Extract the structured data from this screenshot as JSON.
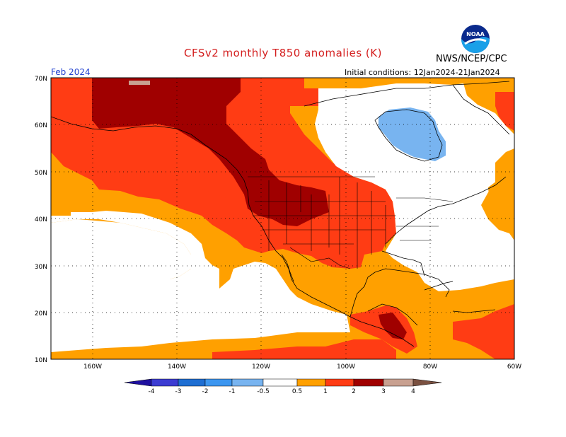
{
  "title": "CFSv2 monthly T850 anomalies (K)",
  "agency": "NWS/NCEP/CPC",
  "month": "Feb 2024",
  "initial_conditions": "Initial conditions: 12Jan2024-21Jan2024",
  "logo_text": "NOAA",
  "lat_labels": [
    "70N",
    "60N",
    "50N",
    "40N",
    "30N",
    "20N",
    "10N"
  ],
  "lon_labels": [
    "160W",
    "140W",
    "120W",
    "100W",
    "80W",
    "60W"
  ],
  "colorbar": {
    "labels": [
      "-4",
      "-3",
      "-2",
      "-1",
      "-0.5",
      "0.5",
      "1",
      "2",
      "3",
      "4"
    ],
    "colors": {
      "lt_-4": "#1e10a0",
      "-4_-3": "#3c3cd2",
      "-3_-2": "#1e6ed2",
      "-2_-1": "#3c96f0",
      "-1_-0.5": "#78b4f0",
      "-0.5_0.5": "#ffffff",
      "0.5_1": "#ffa000",
      "1_2": "#ff3c14",
      "2_3": "#a00000",
      "3_4": "#c8a090",
      "gt_4": "#7a5040"
    }
  },
  "colors": {
    "title": "#d42020",
    "month": "#2040d0",
    "coast": "#000000",
    "grid": "#000000"
  }
}
